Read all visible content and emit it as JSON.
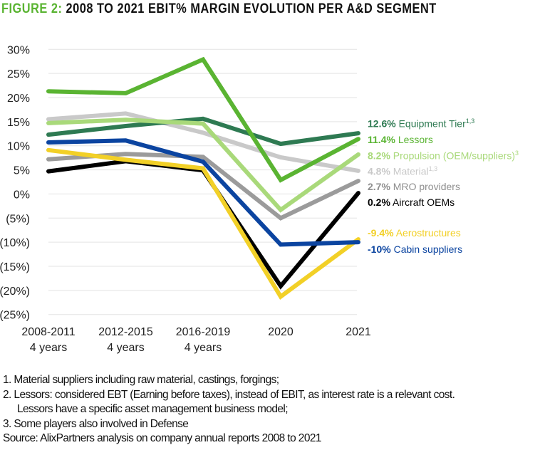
{
  "title": {
    "prefix": "FIGURE 2:",
    "text": "2008 TO 2021 EBIT% MARGIN EVOLUTION PER A&D SEGMENT"
  },
  "chart_data": {
    "type": "line",
    "title": "2008 TO 2021 EBIT% MARGIN EVOLUTION PER A&D SEGMENT",
    "categories": [
      "2008-2011|4 years",
      "2012-2015|4 years",
      "2016-2019|4 years",
      "2020",
      "2021"
    ],
    "y_ticks": [
      "30%",
      "25%",
      "20%",
      "15%",
      "10%",
      "5%",
      "0%",
      "(5%)",
      "(10%)",
      "(15%)",
      "(20%)",
      "(25%)"
    ],
    "ylim": [
      -25,
      30
    ],
    "grid": true,
    "legend": "right (end labels)",
    "series": [
      {
        "name": "Equipment Tier",
        "sup": "1,3",
        "label_value": "12.6%",
        "color": "#2e7a52",
        "values": [
          12.3,
          14.1,
          15.6,
          10.4,
          12.6
        ]
      },
      {
        "name": "Lessors",
        "sup": "",
        "label_value": "11.4%",
        "color": "#5ab432",
        "values": [
          21.3,
          20.9,
          27.9,
          2.9,
          11.4
        ]
      },
      {
        "name": "Propulsion (OEM/suppliers)",
        "sup": "3",
        "label_value": "8.2%",
        "color": "#a9d97a",
        "values": [
          14.7,
          15.4,
          14.6,
          -3.3,
          8.2
        ]
      },
      {
        "name": "Material",
        "sup": "1,3",
        "label_value": "4.8%",
        "color": "#c9c9c9",
        "values": [
          15.5,
          16.7,
          12.7,
          7.6,
          4.8
        ]
      },
      {
        "name": "MRO providers",
        "sup": "",
        "label_value": "2.7%",
        "color": "#9b9b9b",
        "values": [
          7.2,
          8.3,
          7.7,
          -5.0,
          2.7
        ]
      },
      {
        "name": "Aircraft OEMs",
        "sup": "",
        "label_value": "0.2%",
        "color": "#000000",
        "values": [
          4.7,
          6.8,
          4.9,
          -19.1,
          0.2
        ]
      },
      {
        "name": "Aerostructures",
        "sup": "",
        "label_value": "-9.4%",
        "color": "#f2d027",
        "values": [
          9.1,
          7.1,
          5.3,
          -21.3,
          -9.4
        ]
      },
      {
        "name": "Cabin suppliers",
        "sup": "",
        "label_value": "-10%",
        "color": "#0b44a0",
        "values": [
          10.7,
          11.1,
          6.7,
          -10.5,
          -10.0
        ]
      }
    ]
  },
  "notes": [
    "1.  Material suppliers including raw material, castings, forgings;",
    "2.  Lessors: considered EBT (Earning before taxes), instead of EBIT, as interest rate is a relevant cost.",
    "Lessors have a specific asset management business model;",
    "3.  Some players also involved in Defense",
    "Source: AlixPartners analysis on company annual reports 2008 to 2021"
  ]
}
